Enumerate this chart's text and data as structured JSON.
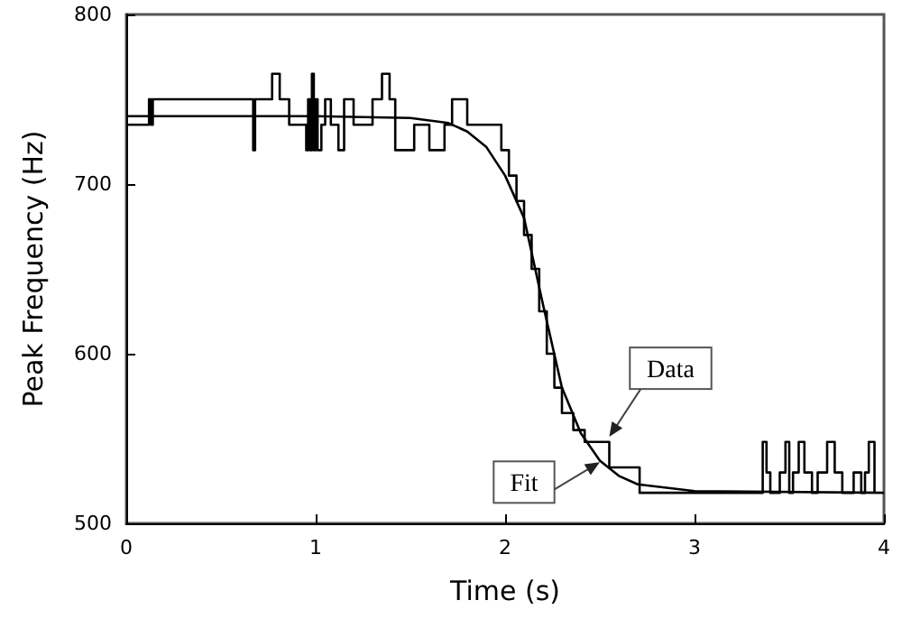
{
  "chart_data": {
    "type": "line",
    "xlabel": "Time (s)",
    "ylabel": "Peak Frequency (Hz)",
    "xlim": [
      0,
      4
    ],
    "xticks": [
      0,
      1,
      2,
      3,
      4
    ],
    "ylim": [
      500,
      800
    ],
    "yticks": [
      500,
      600,
      700,
      800
    ],
    "grid": false,
    "marker": "none",
    "line_style": "solid",
    "series": [
      {
        "type": "step",
        "color": "#000000",
        "x": [
          0,
          0.12,
          0.13,
          0.14,
          0.15,
          0.67,
          0.68,
          0.77,
          0.81,
          0.86,
          0.95,
          0.96,
          0.97,
          0.98,
          0.99,
          1.0,
          1.01,
          1.03,
          1.05,
          1.08,
          1.12,
          1.15,
          1.2,
          1.3,
          1.35,
          1.39,
          1.42,
          1.5,
          1.52,
          1.6,
          1.68,
          1.72,
          1.8,
          1.84,
          1.98,
          2.02,
          2.06,
          2.1,
          2.14,
          2.18,
          2.22,
          2.26,
          2.3,
          2.36,
          2.42,
          2.46,
          2.55,
          2.71,
          3.36,
          3.38,
          3.4,
          3.45,
          3.48,
          3.5,
          3.52,
          3.55,
          3.58,
          3.62,
          3.65,
          3.7,
          3.74,
          3.78,
          3.84,
          3.88,
          3.9,
          3.92,
          3.95
        ],
        "values": [
          735,
          750,
          735,
          750,
          750,
          720,
          750,
          765,
          750,
          735,
          720,
          750,
          720,
          765,
          720,
          750,
          720,
          735,
          750,
          735,
          720,
          750,
          735,
          750,
          765,
          750,
          720,
          720,
          735,
          720,
          735,
          750,
          735,
          735,
          720,
          705,
          690,
          670,
          650,
          625,
          600,
          580,
          565,
          555,
          548,
          548,
          533,
          518,
          548,
          530,
          518,
          530,
          548,
          518,
          530,
          548,
          530,
          518,
          530,
          548,
          530,
          518,
          530,
          518,
          530,
          548,
          518
        ]
      },
      {
        "color": "#000000",
        "x": [
          0,
          1.0,
          1.5,
          1.7,
          1.8,
          1.9,
          2.0,
          2.1,
          2.2,
          2.3,
          2.4,
          2.5,
          2.6,
          2.7,
          3.0,
          4.0
        ],
        "values": [
          740,
          740,
          739,
          736,
          731,
          722,
          705,
          680,
          629,
          580,
          553,
          537,
          528,
          523,
          519,
          518
        ]
      }
    ],
    "annotations": [
      {
        "text": "Data",
        "x": 2.55,
        "y": 551
      },
      {
        "text": "Fit",
        "x": 2.5,
        "y": 536
      }
    ]
  }
}
